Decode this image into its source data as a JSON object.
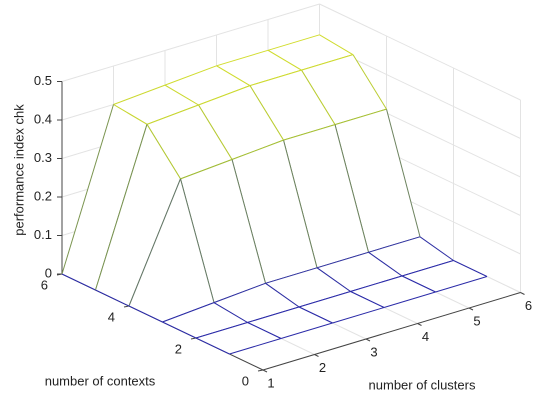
{
  "chart_data": {
    "type": "mesh",
    "xlabel": "number of clusters",
    "ylabel": "number of contexts",
    "zlabel": "performance index chk",
    "x": [
      1,
      2,
      3,
      4,
      5,
      6
    ],
    "y": [
      1,
      2,
      3,
      4,
      5,
      6
    ],
    "z": [
      [
        0,
        0,
        0,
        0,
        0,
        0
      ],
      [
        0,
        0,
        0,
        0,
        0,
        0
      ],
      [
        0,
        0.01,
        0.02,
        0.02,
        0.02,
        0.02
      ],
      [
        0,
        0.29,
        0.3,
        0.31,
        0.31,
        0.31
      ],
      [
        0,
        0.39,
        0.4,
        0.41,
        0.41,
        0.41
      ],
      [
        0,
        0.4,
        0.41,
        0.42,
        0.42,
        0.42
      ]
    ],
    "xlim": [
      1,
      6
    ],
    "xticks": [
      1,
      2,
      3,
      4,
      5,
      6
    ],
    "ylim": [
      0,
      6
    ],
    "yticks": [
      0,
      2,
      4,
      6
    ],
    "zlim": [
      0,
      0.5
    ],
    "zticks": [
      0,
      0.1,
      0.2,
      0.3,
      0.4,
      0.5
    ],
    "grid": true,
    "colormap": [
      "#2b2ba8",
      "#8fb03a",
      "#f2f22a"
    ]
  }
}
